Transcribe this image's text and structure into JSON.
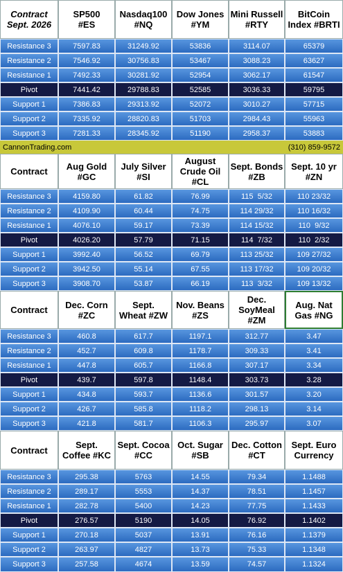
{
  "banner": {
    "left": "CannonTrading.com",
    "right": "(310) 859-9572"
  },
  "blocks": [
    {
      "header": [
        "Contract\nSept. 2026",
        "SP500\n#ES",
        "Nasdaq100\n#NQ",
        "Dow Jones\n#YM",
        "Mini Russell\n#RTY",
        "BitCoin\nIndex #BRTI"
      ],
      "rows": [
        [
          "Resistance 3",
          "7597.83",
          "31249.92",
          "53836",
          "3114.07",
          "65379"
        ],
        [
          "Resistance 2",
          "7546.92",
          "30756.83",
          "53467",
          "3088.23",
          "63627"
        ],
        [
          "Resistance 1",
          "7492.33",
          "30281.92",
          "52954",
          "3062.17",
          "61547"
        ],
        [
          "Pivot",
          "7441.42",
          "29788.83",
          "52585",
          "3036.33",
          "59795"
        ],
        [
          "Support 1",
          "7386.83",
          "29313.92",
          "52072",
          "3010.27",
          "57715"
        ],
        [
          "Support 2",
          "7335.92",
          "28820.83",
          "51703",
          "2984.43",
          "55963"
        ],
        [
          "Support 3",
          "7281.33",
          "28345.92",
          "51190",
          "2958.37",
          "53883"
        ]
      ]
    },
    {
      "header": [
        "Contract",
        "Aug Gold\n#GC",
        "July Silver\n#SI",
        "August\nCrude Oil\n#CL",
        "Sept. Bonds\n#ZB",
        "Sept. 10 yr\n#ZN"
      ],
      "rows": [
        [
          "Resistance 3",
          "4159.80",
          "61.82",
          "76.99",
          "115  5/32",
          "110 23/32"
        ],
        [
          "Resistance 2",
          "4109.90",
          "60.44",
          "74.75",
          "114 29/32",
          "110 16/32"
        ],
        [
          "Resistance 1",
          "4076.10",
          "59.17",
          "73.39",
          "114 15/32",
          "110  9/32"
        ],
        [
          "Pivot",
          "4026.20",
          "57.79",
          "71.15",
          "114  7/32",
          "110  2/32"
        ],
        [
          "Support 1",
          "3992.40",
          "56.52",
          "69.79",
          "113 25/32",
          "109 27/32"
        ],
        [
          "Support 2",
          "3942.50",
          "55.14",
          "67.55",
          "113 17/32",
          "109 20/32"
        ],
        [
          "Support 3",
          "3908.70",
          "53.87",
          "66.19",
          "113  3/32",
          "109 13/32"
        ]
      ]
    },
    {
      "header": [
        "Contract",
        "Dec. Corn\n#ZC",
        "Sept.\nWheat #ZW",
        "Nov. Beans\n#ZS",
        "Dec.\nSoyMeal\n#ZM",
        "Aug. Nat\nGas #NG"
      ],
      "rows": [
        [
          "Resistance 3",
          "460.8",
          "617.7",
          "1197.1",
          "312.77",
          "3.47"
        ],
        [
          "Resistance 2",
          "452.7",
          "609.8",
          "1178.7",
          "309.33",
          "3.41"
        ],
        [
          "Resistance 1",
          "447.8",
          "605.7",
          "1166.8",
          "307.17",
          "3.34"
        ],
        [
          "Pivot",
          "439.7",
          "597.8",
          "1148.4",
          "303.73",
          "3.28"
        ],
        [
          "Support 1",
          "434.8",
          "593.7",
          "1136.6",
          "301.57",
          "3.20"
        ],
        [
          "Support 2",
          "426.7",
          "585.8",
          "1118.2",
          "298.13",
          "3.14"
        ],
        [
          "Support 3",
          "421.8",
          "581.7",
          "1106.3",
          "295.97",
          "3.07"
        ]
      ]
    },
    {
      "header": [
        "Contract",
        "Sept.\nCoffee #KC",
        "Sept. Cocoa\n#CC",
        "Oct. Sugar\n#SB",
        "Dec. Cotton\n#CT",
        "Sept. Euro\nCurrency"
      ],
      "rows": [
        [
          "Resistance 3",
          "295.38",
          "5763",
          "14.55",
          "79.34",
          "1.1488"
        ],
        [
          "Resistance 2",
          "289.17",
          "5553",
          "14.37",
          "78.51",
          "1.1457"
        ],
        [
          "Resistance 1",
          "282.78",
          "5400",
          "14.23",
          "77.75",
          "1.1433"
        ],
        [
          "Pivot",
          "276.57",
          "5190",
          "14.05",
          "76.92",
          "1.1402"
        ],
        [
          "Support 1",
          "270.18",
          "5037",
          "13.91",
          "76.16",
          "1.1379"
        ],
        [
          "Support 2",
          "263.97",
          "4827",
          "13.73",
          "75.33",
          "1.1348"
        ],
        [
          "Support 3",
          "257.58",
          "4674",
          "13.59",
          "74.57",
          "1.1324"
        ]
      ]
    }
  ]
}
